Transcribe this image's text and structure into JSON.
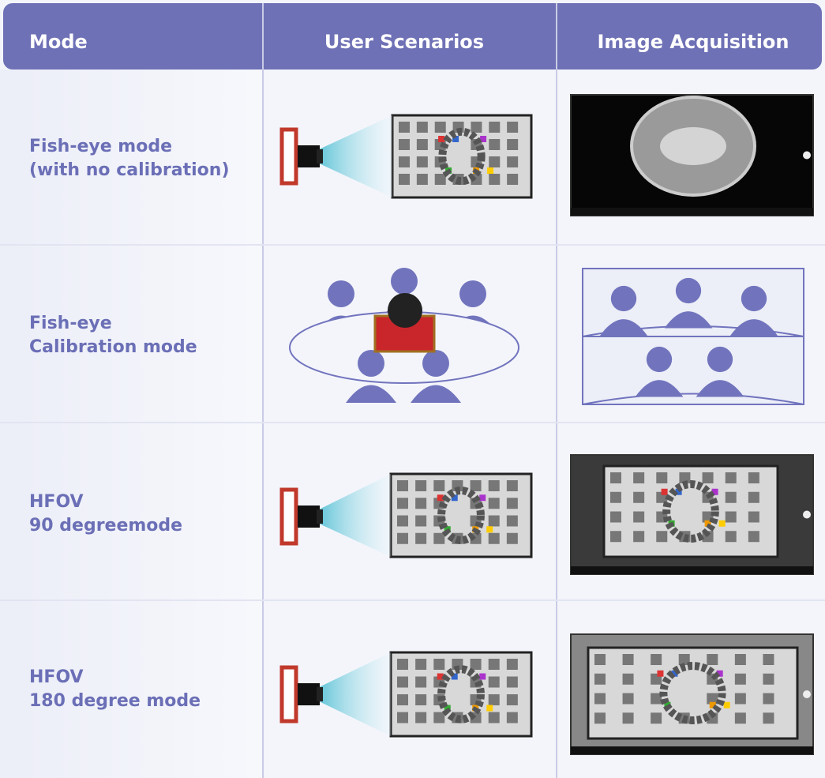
{
  "header": {
    "columns": [
      "Mode",
      "User Scenarios",
      "Image Acquisition"
    ]
  },
  "rows": [
    {
      "mode": [
        "Fish-eye mode",
        "(with no calibration)"
      ]
    },
    {
      "mode": [
        "Fish-eye",
        "Calibration mode"
      ]
    },
    {
      "mode": [
        "HFOV",
        "90 degreemode"
      ]
    },
    {
      "mode": [
        "HFOV",
        "180 degree mode"
      ]
    }
  ]
}
